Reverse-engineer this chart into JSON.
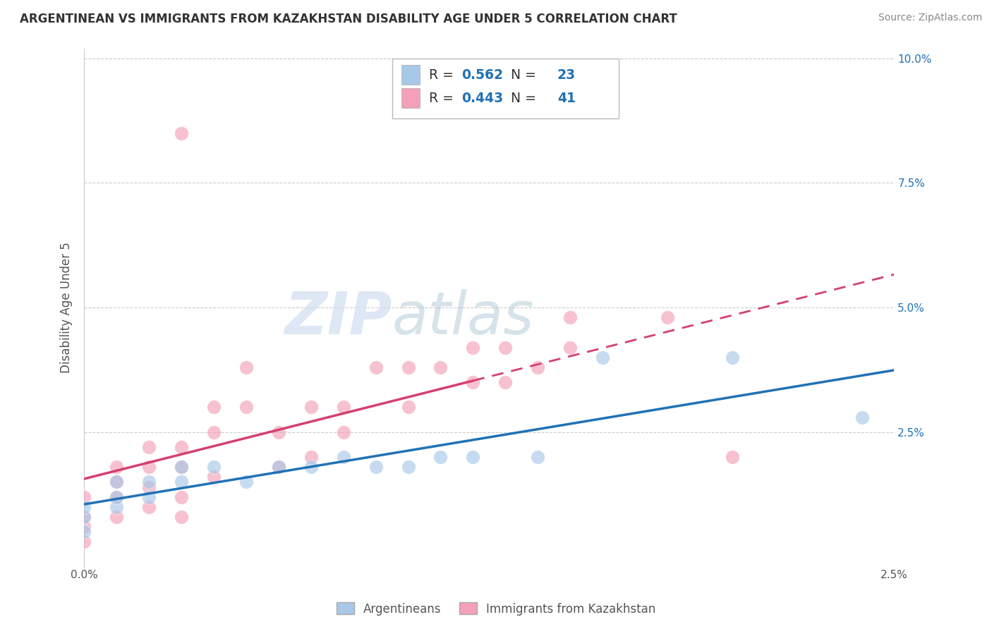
{
  "title": "ARGENTINEAN VS IMMIGRANTS FROM KAZAKHSTAN DISABILITY AGE UNDER 5 CORRELATION CHART",
  "source": "Source: ZipAtlas.com",
  "ylabel": "Disability Age Under 5",
  "xlim": [
    0.0,
    0.025
  ],
  "ylim": [
    -0.002,
    0.102
  ],
  "ytick_labels": [
    "2.5%",
    "5.0%",
    "7.5%",
    "10.0%"
  ],
  "ytick_values": [
    0.025,
    0.05,
    0.075,
    0.1
  ],
  "xtick_labels": [
    "0.0%",
    "2.5%"
  ],
  "xtick_values": [
    0.0,
    0.025
  ],
  "legend_label1": "Argentineans",
  "legend_label2": "Immigrants from Kazakhstan",
  "R1": 0.562,
  "N1": 23,
  "R2": 0.443,
  "N2": 41,
  "color_blue": "#a8c8e8",
  "color_pink": "#f4a0b8",
  "color_blue_dark": "#2171b5",
  "color_pink_dark": "#d44070",
  "watermark_zip": "ZIP",
  "watermark_atlas": "atlas",
  "argentineans_x": [
    0.0,
    0.0,
    0.0,
    0.001,
    0.001,
    0.001,
    0.002,
    0.002,
    0.003,
    0.003,
    0.004,
    0.005,
    0.006,
    0.007,
    0.008,
    0.009,
    0.01,
    0.011,
    0.012,
    0.014,
    0.016,
    0.02,
    0.024
  ],
  "argentineans_y": [
    0.005,
    0.008,
    0.01,
    0.01,
    0.012,
    0.015,
    0.012,
    0.015,
    0.015,
    0.018,
    0.018,
    0.015,
    0.018,
    0.018,
    0.02,
    0.018,
    0.018,
    0.02,
    0.02,
    0.02,
    0.04,
    0.04,
    0.028
  ],
  "kazakhstan_x": [
    0.0,
    0.0,
    0.0,
    0.0,
    0.001,
    0.001,
    0.001,
    0.001,
    0.002,
    0.002,
    0.002,
    0.002,
    0.003,
    0.003,
    0.003,
    0.003,
    0.004,
    0.004,
    0.004,
    0.005,
    0.005,
    0.006,
    0.006,
    0.007,
    0.007,
    0.008,
    0.008,
    0.009,
    0.01,
    0.01,
    0.011,
    0.012,
    0.012,
    0.013,
    0.013,
    0.014,
    0.015,
    0.015,
    0.018,
    0.02,
    0.003
  ],
  "kazakhstan_y": [
    0.003,
    0.006,
    0.008,
    0.012,
    0.008,
    0.012,
    0.015,
    0.018,
    0.01,
    0.014,
    0.018,
    0.022,
    0.008,
    0.012,
    0.018,
    0.022,
    0.016,
    0.025,
    0.03,
    0.03,
    0.038,
    0.018,
    0.025,
    0.02,
    0.03,
    0.025,
    0.03,
    0.038,
    0.03,
    0.038,
    0.038,
    0.035,
    0.042,
    0.035,
    0.042,
    0.038,
    0.042,
    0.048,
    0.048,
    0.02,
    0.085
  ]
}
